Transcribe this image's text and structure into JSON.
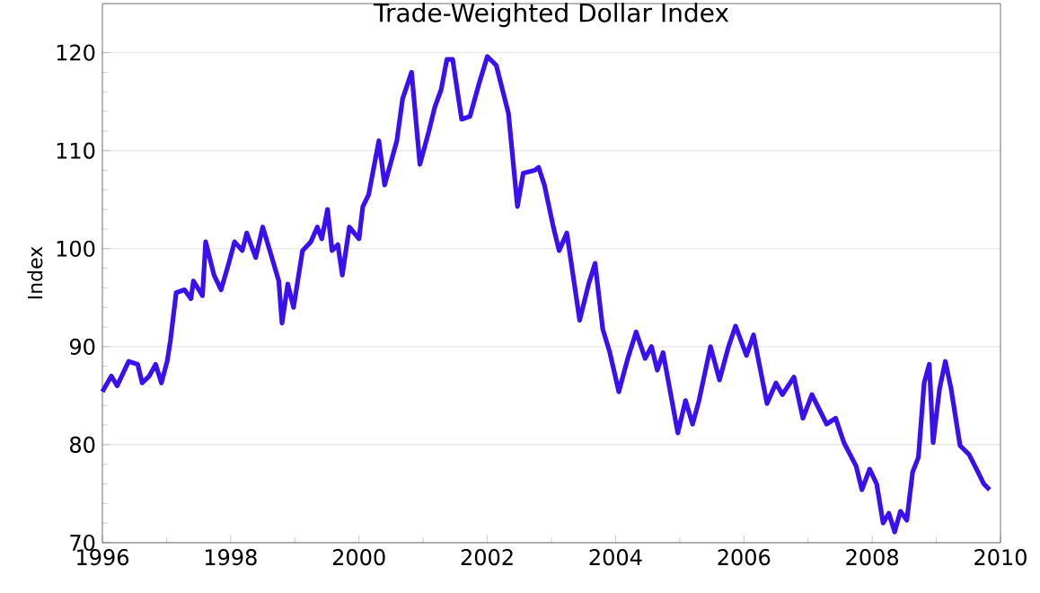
{
  "chart_data": {
    "type": "line",
    "title": "Trade-Weighted Dollar Index",
    "ylabel": "Index",
    "xlim": [
      1996,
      2010
    ],
    "xticks": [
      1996,
      1998,
      2000,
      2002,
      2004,
      2006,
      2008,
      2010
    ],
    "ylim": [
      70,
      125
    ],
    "yticks": [
      70,
      80,
      90,
      100,
      110,
      120
    ],
    "grid": "y",
    "marker": "none",
    "line_style": "solid",
    "series": [
      {
        "color": "#3a10f0",
        "x": [
          1996.0,
          1996.14,
          1996.23,
          1996.41,
          1996.55,
          1996.62,
          1996.73,
          1996.83,
          1996.92,
          1997.01,
          1997.06,
          1997.15,
          1997.28,
          1997.38,
          1997.42,
          1997.56,
          1997.61,
          1997.74,
          1997.85,
          1997.97,
          1998.06,
          1998.18,
          1998.25,
          1998.39,
          1998.5,
          1998.61,
          1998.75,
          1998.8,
          1998.89,
          1998.98,
          1999.12,
          1999.25,
          1999.35,
          1999.42,
          1999.51,
          1999.58,
          1999.67,
          1999.74,
          1999.85,
          2000.0,
          2000.06,
          2000.15,
          2000.31,
          2000.4,
          2000.59,
          2000.68,
          2000.82,
          2000.95,
          2001.09,
          2001.18,
          2001.28,
          2001.37,
          2001.46,
          2001.6,
          2001.73,
          2001.87,
          2002.0,
          2002.14,
          2002.33,
          2002.47,
          2002.56,
          2002.74,
          2002.8,
          2002.89,
          2003.03,
          2003.12,
          2003.24,
          2003.35,
          2003.44,
          2003.58,
          2003.68,
          2003.8,
          2003.91,
          2004.05,
          2004.19,
          2004.32,
          2004.46,
          2004.56,
          2004.65,
          2004.74,
          2004.97,
          2005.09,
          2005.2,
          2005.3,
          2005.48,
          2005.62,
          2005.76,
          2005.87,
          2006.04,
          2006.15,
          2006.36,
          2006.5,
          2006.6,
          2006.78,
          2006.92,
          2007.06,
          2007.29,
          2007.43,
          2007.56,
          2007.75,
          2007.84,
          2007.96,
          2008.07,
          2008.17,
          2008.26,
          2008.35,
          2008.44,
          2008.54,
          2008.63,
          2008.72,
          2008.81,
          2008.89,
          2008.95,
          2009.05,
          2009.14,
          2009.23,
          2009.37,
          2009.51,
          2009.65,
          2009.74,
          2009.83
        ],
        "values": [
          85.4,
          87,
          86,
          88.5,
          88.2,
          86.3,
          87,
          88.2,
          86.3,
          88.5,
          90.6,
          95.5,
          95.8,
          94.9,
          96.7,
          95.2,
          100.7,
          97.3,
          95.8,
          98.5,
          100.7,
          99.8,
          101.6,
          99.1,
          102.2,
          99.8,
          96.7,
          92.4,
          96.4,
          94,
          99.8,
          100.7,
          102.2,
          101,
          104,
          99.8,
          100.4,
          97.3,
          102.2,
          101,
          104.3,
          105.5,
          111,
          106.5,
          111,
          115.3,
          118,
          108.6,
          112,
          114.4,
          116.2,
          119.3,
          119.3,
          113.2,
          113.5,
          116.8,
          119.6,
          118.7,
          113.8,
          104.3,
          107.7,
          108,
          108.3,
          106.5,
          102.2,
          99.8,
          101.6,
          96.7,
          92.7,
          96.4,
          98.5,
          91.8,
          89.4,
          85.4,
          88.8,
          91.5,
          88.8,
          90,
          87.6,
          89.4,
          81.2,
          84.5,
          82.1,
          84.5,
          90,
          86.6,
          90,
          92.1,
          89.1,
          91.2,
          84.2,
          86.3,
          85.1,
          86.9,
          82.7,
          85.1,
          82.1,
          82.7,
          80.2,
          77.8,
          75.4,
          77.5,
          76,
          72,
          73,
          71.1,
          73.2,
          72.3,
          77.2,
          78.7,
          86.3,
          88.2,
          80.2,
          85.7,
          88.5,
          85.7,
          79.9,
          79,
          77.2,
          76,
          75.4
        ]
      }
    ]
  }
}
